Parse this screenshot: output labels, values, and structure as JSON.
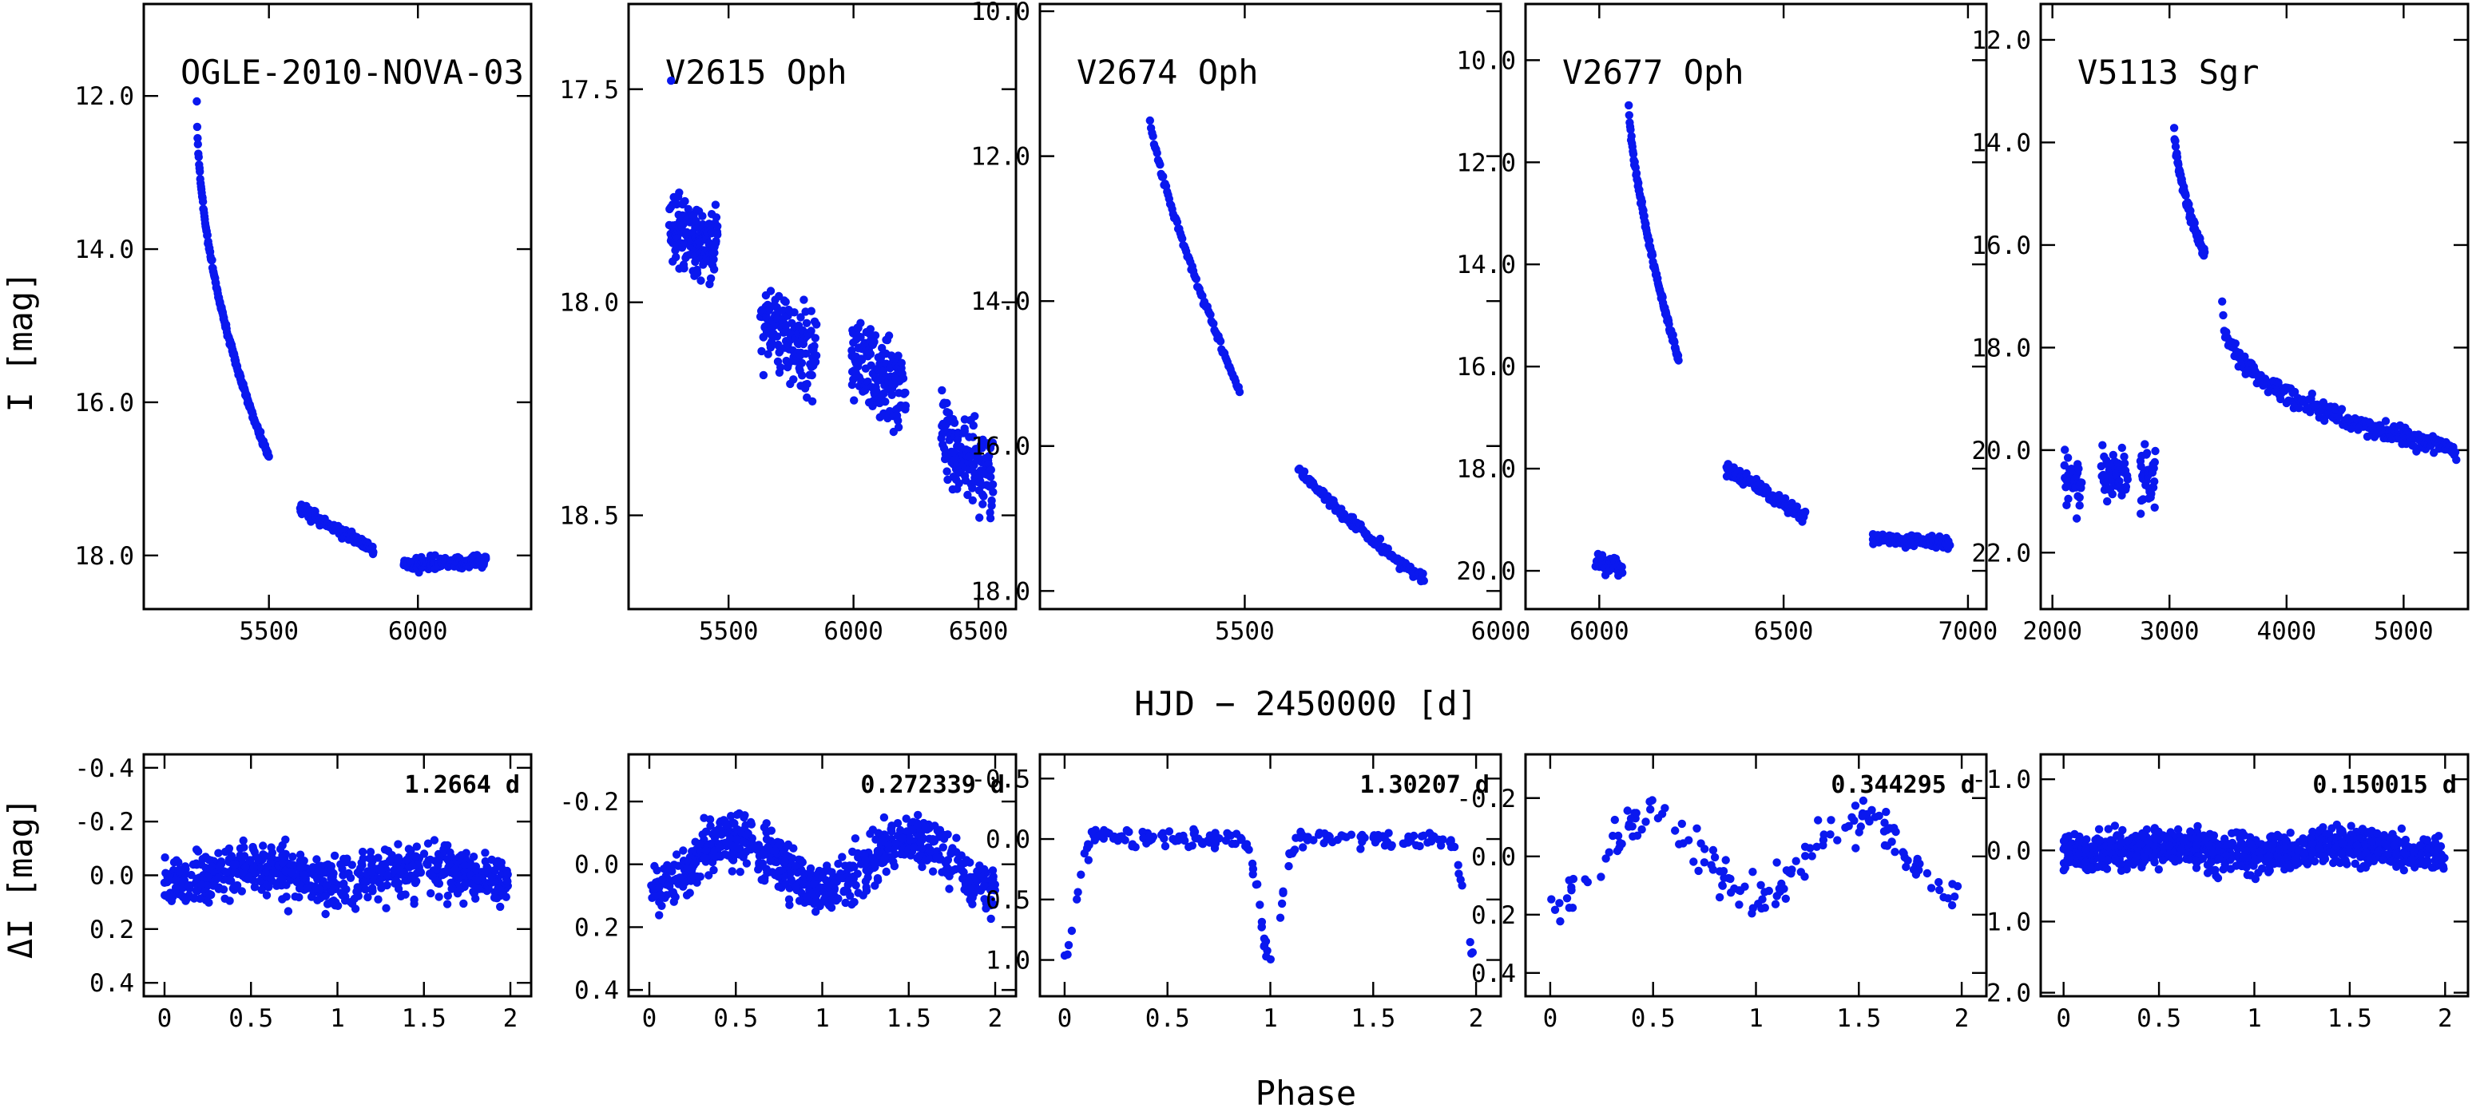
{
  "figure": {
    "xlabel_top": "HJD − 2450000 [d]",
    "xlabel_bottom": "Phase",
    "ylabel_top": "I [mag]",
    "ylabel_bottom": "ΔI [mag]",
    "point_color": "#0a18ef"
  },
  "chart_data": [
    {
      "type": "scatter",
      "row": "light-curve",
      "title": "OGLE-2010-NOVA-03",
      "xlabel": "HJD − 2450000 [d]",
      "ylabel": "I [mag]",
      "xlim": [
        5080,
        6380
      ],
      "ylim": [
        18.7,
        10.8
      ],
      "y_inverted": true,
      "xticks": [
        5500,
        6000
      ],
      "xtick_labels": [
        "5500",
        "6000"
      ],
      "yticks": [
        12.0,
        14.0,
        16.0,
        18.0
      ],
      "ytick_labels": [
        "12.0",
        "14.0",
        "16.0",
        "18.0"
      ],
      "segments": [
        {
          "kind": "decay",
          "x0": 5258,
          "x1": 5500,
          "y0": 12.05,
          "y1": 16.72,
          "curve": 0.5,
          "scatter": 0.04,
          "n": 190
        },
        {
          "kind": "band",
          "x0": 5605,
          "x1": 5850,
          "y0": 17.4,
          "y1": 17.92,
          "scatter": 0.07,
          "n": 110
        },
        {
          "kind": "band",
          "x0": 5950,
          "x1": 6230,
          "y0": 18.12,
          "y1": 18.08,
          "scatter": 0.08,
          "n": 140
        }
      ]
    },
    {
      "type": "scatter",
      "row": "light-curve",
      "title": "V2615 Oph",
      "xlabel": "HJD − 2450000 [d]",
      "ylabel": "I [mag]",
      "xlim": [
        5100,
        6650
      ],
      "ylim": [
        18.72,
        17.3
      ],
      "y_inverted": true,
      "xticks": [
        5500,
        6000,
        6500
      ],
      "xtick_labels": [
        "5500",
        "6000",
        "6500"
      ],
      "yticks": [
        17.5,
        18.0,
        18.5
      ],
      "ytick_labels": [
        "17.5",
        "18.0",
        "18.5"
      ],
      "segments": [
        {
          "kind": "point",
          "x": 5270,
          "y": 17.48
        },
        {
          "kind": "band",
          "x0": 5265,
          "x1": 5455,
          "y0": 17.82,
          "y1": 17.86,
          "scatter": 0.08,
          "n": 170
        },
        {
          "kind": "band",
          "x0": 5630,
          "x1": 5850,
          "y0": 18.05,
          "y1": 18.12,
          "scatter": 0.09,
          "n": 150
        },
        {
          "kind": "band",
          "x0": 5990,
          "x1": 6210,
          "y0": 18.12,
          "y1": 18.22,
          "scatter": 0.09,
          "n": 150
        },
        {
          "kind": "band",
          "x0": 6350,
          "x1": 6560,
          "y0": 18.32,
          "y1": 18.42,
          "scatter": 0.11,
          "n": 140
        }
      ]
    },
    {
      "type": "scatter",
      "row": "light-curve",
      "title": "V2674 Oph",
      "xlabel": "HJD − 2450000 [d]",
      "ylabel": "I [mag]",
      "xlim": [
        5100,
        6000
      ],
      "ylim": [
        18.25,
        9.9
      ],
      "y_inverted": true,
      "xticks": [
        5500,
        6000
      ],
      "xtick_labels": [
        "5500",
        "6000"
      ],
      "yticks": [
        10.0,
        12.0,
        14.0,
        16.0,
        18.0
      ],
      "ytick_labels": [
        "10.0",
        "12.0",
        "14.0",
        "16.0",
        "18.0"
      ],
      "segments": [
        {
          "kind": "decay",
          "x0": 5315,
          "x1": 5490,
          "y0": 11.5,
          "y1": 15.25,
          "curve": 0.8,
          "scatter": 0.05,
          "n": 90
        },
        {
          "kind": "decay",
          "x0": 5605,
          "x1": 5850,
          "y0": 16.3,
          "y1": 17.85,
          "curve": 0.85,
          "scatter": 0.07,
          "n": 130
        }
      ]
    },
    {
      "type": "scatter",
      "row": "light-curve",
      "title": "V2677 Oph",
      "xlabel": "HJD − 2450000 [d]",
      "ylabel": "I [mag]",
      "xlim": [
        5800,
        7050
      ],
      "ylim": [
        20.75,
        8.9
      ],
      "y_inverted": true,
      "xticks": [
        6000,
        6500,
        7000
      ],
      "xtick_labels": [
        "6000",
        "6500",
        "7000"
      ],
      "yticks": [
        10.0,
        12.0,
        14.0,
        16.0,
        18.0,
        20.0
      ],
      "ytick_labels": [
        "10.0",
        "12.0",
        "14.0",
        "16.0",
        "18.0",
        "20.0"
      ],
      "segments": [
        {
          "kind": "band",
          "x0": 5990,
          "x1": 6060,
          "y0": 19.85,
          "y1": 19.9,
          "scatter": 0.15,
          "n": 45
        },
        {
          "kind": "decay",
          "x0": 6080,
          "x1": 6215,
          "y0": 10.9,
          "y1": 15.9,
          "curve": 0.7,
          "scatter": 0.08,
          "n": 110
        },
        {
          "kind": "band",
          "x0": 6345,
          "x1": 6560,
          "y0": 18.0,
          "y1": 18.95,
          "scatter": 0.12,
          "n": 120
        },
        {
          "kind": "band",
          "x0": 6740,
          "x1": 6950,
          "y0": 19.35,
          "y1": 19.45,
          "scatter": 0.12,
          "n": 110
        }
      ]
    },
    {
      "type": "scatter",
      "row": "light-curve",
      "title": "V5113 Sgr",
      "xlabel": "HJD − 2450000 [d]",
      "ylabel": "I [mag]",
      "xlim": [
        1900,
        5550
      ],
      "ylim": [
        23.1,
        11.3
      ],
      "y_inverted": true,
      "xticks": [
        2000,
        3000,
        4000,
        5000
      ],
      "xtick_labels": [
        "2000",
        "3000",
        "4000",
        "5000"
      ],
      "yticks": [
        12.0,
        14.0,
        16.0,
        18.0,
        20.0,
        22.0
      ],
      "ytick_labels": [
        "12.0",
        "14.0",
        "16.0",
        "18.0",
        "20.0",
        "22.0"
      ],
      "segments": [
        {
          "kind": "band",
          "x0": 2100,
          "x1": 2250,
          "y0": 20.6,
          "y1": 20.7,
          "scatter": 0.45,
          "n": 40
        },
        {
          "kind": "band",
          "x0": 2420,
          "x1": 2640,
          "y0": 20.4,
          "y1": 20.5,
          "scatter": 0.5,
          "n": 55
        },
        {
          "kind": "band",
          "x0": 2750,
          "x1": 2880,
          "y0": 20.5,
          "y1": 20.6,
          "scatter": 0.5,
          "n": 40
        },
        {
          "kind": "decay",
          "x0": 3040,
          "x1": 3300,
          "y0": 13.7,
          "y1": 16.2,
          "curve": 0.6,
          "scatter": 0.1,
          "n": 80
        },
        {
          "kind": "decay",
          "x0": 3450,
          "x1": 5450,
          "y0": 17.0,
          "y1": 20.0,
          "curve": 0.35,
          "scatter": 0.18,
          "n": 230
        }
      ]
    },
    {
      "type": "scatter",
      "row": "phased",
      "period_label": "1.2664 d",
      "xlabel": "Phase",
      "ylabel": "ΔI [mag]",
      "xlim": [
        -0.12,
        2.12
      ],
      "ylim": [
        0.45,
        -0.45
      ],
      "y_inverted": true,
      "xticks": [
        0,
        0.5,
        1,
        1.5,
        2
      ],
      "xtick_labels": [
        "0",
        "0.5",
        "1",
        "1.5",
        "2"
      ],
      "yticks": [
        -0.4,
        -0.2,
        0.0,
        0.2,
        0.4
      ],
      "ytick_labels": [
        "-0.4",
        "-0.2",
        "0.0",
        "0.2",
        "0.4"
      ],
      "phase_model": {
        "kind": "sine",
        "amp": 0.03,
        "scatter": 0.09,
        "n": 700
      }
    },
    {
      "type": "scatter",
      "row": "phased",
      "period_label": "0.272339 d",
      "xlabel": "Phase",
      "ylabel": "ΔI [mag]",
      "xlim": [
        -0.12,
        2.12
      ],
      "ylim": [
        0.42,
        -0.35
      ],
      "y_inverted": true,
      "xticks": [
        0,
        0.5,
        1,
        1.5,
        2
      ],
      "xtick_labels": [
        "0",
        "0.5",
        "1",
        "1.5",
        "2"
      ],
      "yticks": [
        -0.2,
        0.0,
        0.2,
        0.4
      ],
      "ytick_labels": [
        "-0.2",
        "0.0",
        "0.2",
        "0.4"
      ],
      "phase_model": {
        "kind": "sine",
        "amp": 0.08,
        "scatter": 0.08,
        "n": 700
      }
    },
    {
      "type": "scatter",
      "row": "phased",
      "period_label": "1.30207 d",
      "xlabel": "Phase",
      "ylabel": "ΔI [mag]",
      "xlim": [
        -0.12,
        2.12
      ],
      "ylim": [
        1.3,
        -0.7
      ],
      "y_inverted": true,
      "xticks": [
        0,
        0.5,
        1,
        1.5,
        2
      ],
      "xtick_labels": [
        "0",
        "0.5",
        "1",
        "1.5",
        "2"
      ],
      "yticks": [
        0.0,
        0.5,
        1.0
      ],
      "minor_yticks": [
        -0.5
      ],
      "ytick_labels": [
        "-0.5",
        "0.0",
        "0.5",
        "1.0"
      ],
      "phase_model": {
        "kind": "eclipse",
        "depth": 1.0,
        "width": 0.05,
        "scatter": 0.07,
        "n": 200
      }
    },
    {
      "type": "scatter",
      "row": "phased",
      "period_label": "0.344295 d",
      "xlabel": "Phase",
      "ylabel": "ΔI [mag]",
      "xlim": [
        -0.12,
        2.12
      ],
      "ylim": [
        0.48,
        -0.35
      ],
      "y_inverted": true,
      "xticks": [
        0,
        0.5,
        1,
        1.5,
        2
      ],
      "xtick_labels": [
        "0",
        "0.5",
        "1",
        "1.5",
        "2"
      ],
      "yticks": [
        -0.2,
        0.0,
        0.2,
        0.4
      ],
      "ytick_labels": [
        "-0.2",
        "0.0",
        "0.2",
        "0.4"
      ],
      "phase_model": {
        "kind": "sine",
        "amp": 0.14,
        "scatter": 0.07,
        "n": 160
      }
    },
    {
      "type": "scatter",
      "row": "phased",
      "period_label": "0.150015 d",
      "xlabel": "Phase",
      "ylabel": "ΔI [mag]",
      "xlim": [
        -0.12,
        2.12
      ],
      "ylim": [
        2.05,
        -1.35
      ],
      "y_inverted": true,
      "xticks": [
        0,
        0.5,
        1,
        1.5,
        2
      ],
      "xtick_labels": [
        "0",
        "0.5",
        "1",
        "1.5",
        "2"
      ],
      "yticks": [
        -1.0,
        0.0,
        1.0,
        2.0
      ],
      "ytick_labels": [
        "-1.0",
        "0.0",
        "1.0",
        "2.0"
      ],
      "phase_model": {
        "kind": "sine",
        "amp": 0.05,
        "scatter": 0.25,
        "n": 1000
      }
    }
  ]
}
